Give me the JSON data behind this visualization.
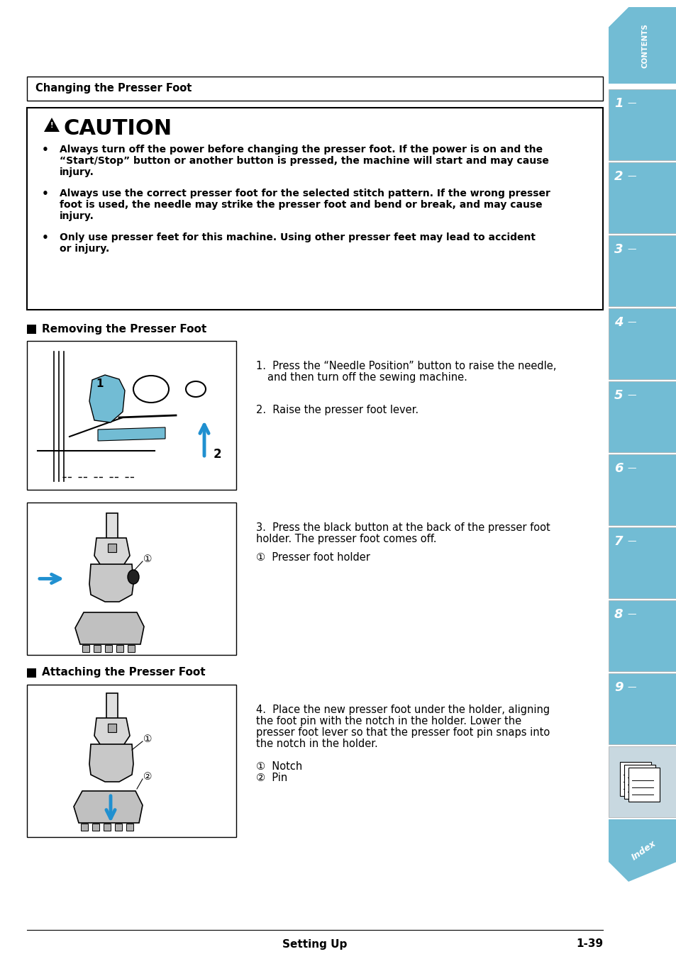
{
  "page_bg": "#ffffff",
  "sidebar_color": "#72bcd4",
  "tab_bg_light": "#a8d5e8",
  "gray_tab": "#b8c8d0",
  "title_box_text": "Changing the Presser Foot",
  "caution_title": "CAUTION",
  "caution_bullet1": "Always turn off the power before changing the presser foot. If the power is on and the “Start/Stop” button or another button is pressed, the machine will start and may cause injury.",
  "caution_bullet2": "Always use the correct presser foot for the selected stitch pattern. If the wrong presser foot is used, the needle may strike the presser foot and bend or break, and may cause injury.",
  "caution_bullet3": "Only use presser feet for this machine. Using other presser feet may lead to accident or injury.",
  "section1_title": "Removing the Presser Foot",
  "section2_title": "Attaching the Presser Foot",
  "step1a": "1.  Press the “Needle Position” button to raise the needle,",
  "step1b": "and then turn off the sewing machine.",
  "step2": "2.  Raise the presser foot lever.",
  "step3a": "3.  Press the black button at the back of the presser foot",
  "step3b": "holder. The presser foot comes off.",
  "step3c": "①  Presser foot holder",
  "step4a": "4.  Place the new presser foot under the holder, aligning",
  "step4b": "the foot pin with the notch in the holder. Lower the",
  "step4c": "presser foot lever so that the presser foot pin snaps into",
  "step4d": "the notch in the holder.",
  "step4e": "①  Notch",
  "step4f": "②  Pin",
  "footer_left": "Setting Up",
  "footer_right": "1-39",
  "arrow_color": "#2090d0",
  "tab_numbers": [
    "1",
    "2",
    "3",
    "4",
    "5",
    "6",
    "7",
    "8",
    "9"
  ]
}
